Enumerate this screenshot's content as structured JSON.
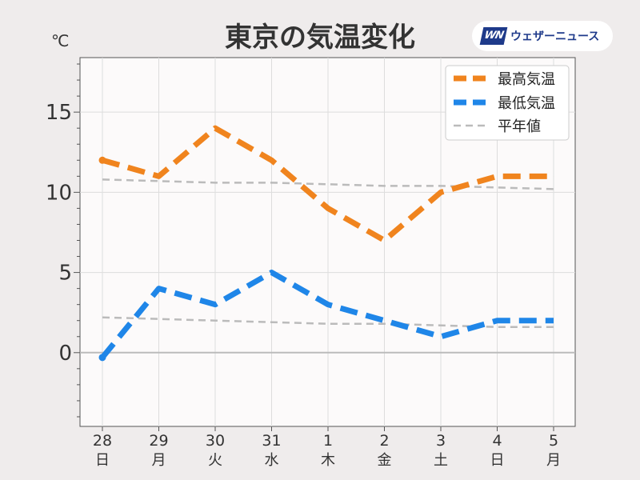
{
  "chart_data": {
    "type": "line",
    "title": "東京の気温変化",
    "y_unit": "℃",
    "ylim": [
      -4.6,
      18.4
    ],
    "yticks": [
      0,
      5,
      10,
      15
    ],
    "grid": true,
    "legend_position": "top-right",
    "x_dates": [
      "28",
      "29",
      "30",
      "31",
      "1",
      "2",
      "3",
      "4",
      "5"
    ],
    "x_weekdays": [
      "日",
      "月",
      "火",
      "水",
      "木",
      "金",
      "土",
      "日",
      "月"
    ],
    "x_label_colors": [
      "#e03a3a",
      "#333333",
      "#333333",
      "#333333",
      "#e03a3a",
      "#333333",
      "#3b8fd9",
      "#e03a3a",
      "#333333"
    ],
    "series": [
      {
        "name": "最高気温",
        "color": "#f0841e",
        "values": [
          12,
          11,
          14,
          12,
          9,
          7,
          10,
          11,
          11
        ]
      },
      {
        "name": "最低気温",
        "color": "#1f86e8",
        "values": [
          -0.3,
          4,
          3,
          5,
          3,
          2,
          1,
          2,
          2
        ]
      },
      {
        "name": "平年値",
        "color": "#bbbbbb",
        "sub": [
          {
            "values": [
              10.8,
              10.7,
              10.6,
              10.6,
              10.5,
              10.4,
              10.4,
              10.3,
              10.2
            ]
          },
          {
            "values": [
              2.2,
              2.1,
              2.0,
              1.9,
              1.8,
              1.8,
              1.7,
              1.6,
              1.6
            ]
          }
        ]
      }
    ]
  },
  "logo": {
    "mark": "WN",
    "text": "ウェザーニュース"
  }
}
